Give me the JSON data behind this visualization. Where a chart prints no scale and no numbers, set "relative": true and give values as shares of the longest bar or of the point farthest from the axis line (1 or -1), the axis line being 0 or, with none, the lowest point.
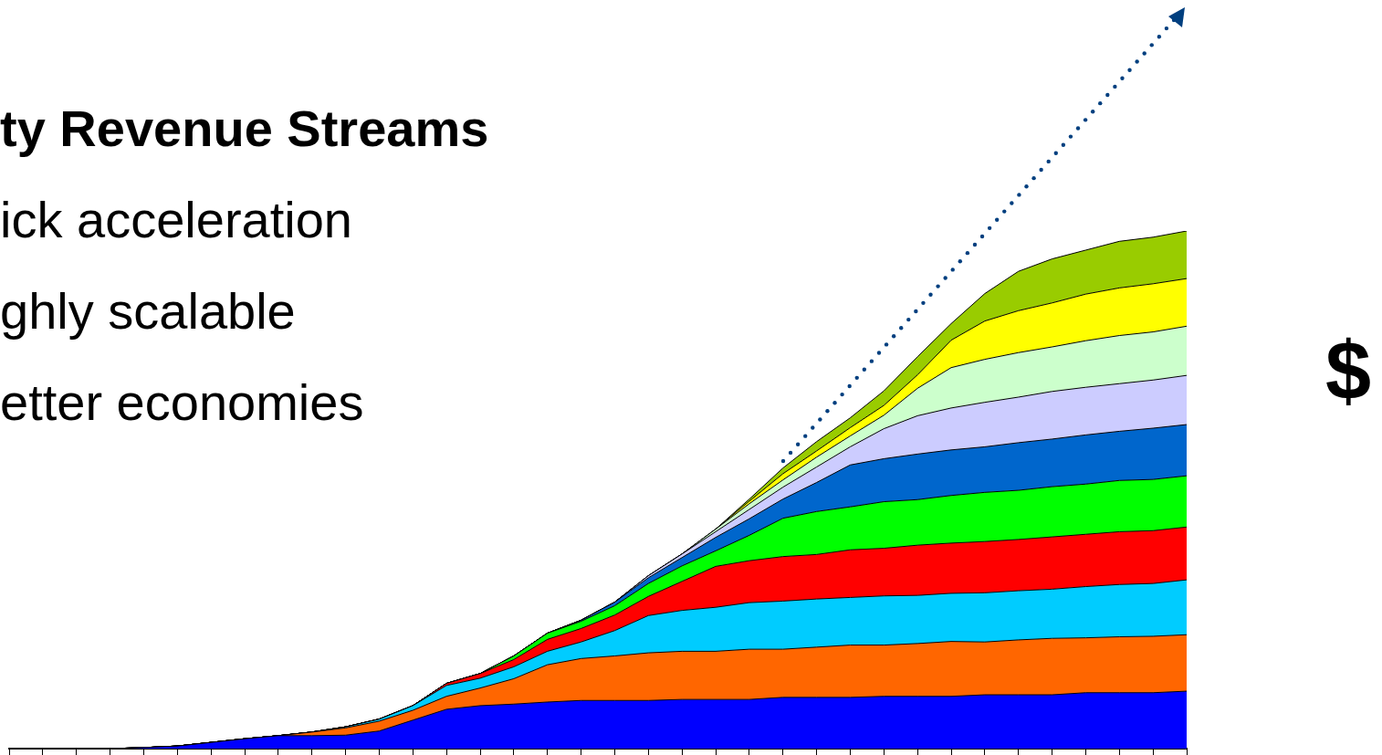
{
  "chart_data": {
    "type": "area",
    "title": "ty Revenue Streams",
    "annotations": [
      "ick acceleration",
      "ghly scalable",
      "etter economies",
      "$"
    ],
    "relative": true,
    "stacked": true,
    "categories": [
      null,
      null,
      null,
      null,
      null,
      null,
      null,
      null,
      null,
      null,
      null,
      null,
      null,
      null,
      null,
      null,
      null,
      null,
      null,
      null,
      null,
      null,
      null,
      null,
      null,
      null,
      null,
      null,
      null,
      null,
      null,
      null,
      null,
      null,
      null,
      null
    ],
    "series": [
      {
        "color": "#0000ff",
        "values": [
          0,
          0,
          0,
          0,
          0.002,
          0.005,
          0.012,
          0.019,
          0.025,
          0.025,
          0.026,
          0.034,
          0.055,
          0.076,
          0.083,
          0.086,
          0.09,
          0.093,
          0.093,
          0.093,
          0.095,
          0.095,
          0.095,
          0.099,
          0.099,
          0.099,
          0.101,
          0.101,
          0.101,
          0.104,
          0.104,
          0.104,
          0.108,
          0.108,
          0.108,
          0.111
        ]
      },
      {
        "color": "#ff6600",
        "values": [
          0,
          0,
          0,
          0,
          0,
          0,
          0,
          0,
          0,
          0.007,
          0.014,
          0.019,
          0.019,
          0.025,
          0.034,
          0.049,
          0.072,
          0.081,
          0.086,
          0.092,
          0.093,
          0.093,
          0.097,
          0.093,
          0.097,
          0.101,
          0.099,
          0.102,
          0.106,
          0.102,
          0.106,
          0.109,
          0.106,
          0.108,
          0.109,
          0.109
        ]
      },
      {
        "color": "#00ccff",
        "values": [
          0,
          0,
          0,
          0,
          0,
          0,
          0,
          0,
          0,
          0,
          0.002,
          0.004,
          0.009,
          0.021,
          0.019,
          0.023,
          0.026,
          0.032,
          0.049,
          0.072,
          0.079,
          0.085,
          0.09,
          0.093,
          0.093,
          0.092,
          0.095,
          0.093,
          0.093,
          0.095,
          0.095,
          0.095,
          0.099,
          0.101,
          0.102,
          0.106
        ]
      },
      {
        "color": "#ff0000",
        "values": [
          0,
          0,
          0,
          0,
          0,
          0,
          0,
          0,
          0,
          0,
          0,
          0,
          0,
          0.004,
          0.009,
          0.014,
          0.023,
          0.026,
          0.03,
          0.037,
          0.056,
          0.079,
          0.081,
          0.086,
          0.086,
          0.092,
          0.092,
          0.097,
          0.097,
          0.099,
          0.099,
          0.101,
          0.101,
          0.102,
          0.102,
          0.102
        ]
      },
      {
        "color": "#00ff00",
        "values": [
          0,
          0,
          0,
          0,
          0,
          0,
          0,
          0,
          0,
          0,
          0,
          0,
          0,
          0,
          0,
          0.007,
          0.012,
          0.014,
          0.018,
          0.025,
          0.03,
          0.03,
          0.049,
          0.074,
          0.083,
          0.083,
          0.09,
          0.088,
          0.092,
          0.095,
          0.095,
          0.097,
          0.097,
          0.099,
          0.099,
          0.099
        ]
      },
      {
        "color": "#0066cc",
        "values": [
          0,
          0,
          0,
          0,
          0,
          0,
          0,
          0,
          0,
          0,
          0,
          0,
          0,
          0,
          0,
          0,
          0,
          0.002,
          0.007,
          0.011,
          0.016,
          0.026,
          0.032,
          0.037,
          0.056,
          0.081,
          0.083,
          0.088,
          0.088,
          0.088,
          0.092,
          0.092,
          0.095,
          0.095,
          0.099,
          0.099
        ]
      },
      {
        "color": "#ccccff",
        "values": [
          0,
          0,
          0,
          0,
          0,
          0,
          0,
          0,
          0,
          0,
          0,
          0,
          0,
          0,
          0,
          0,
          0,
          0,
          0,
          0.004,
          0.007,
          0.011,
          0.018,
          0.023,
          0.03,
          0.035,
          0.058,
          0.074,
          0.081,
          0.086,
          0.088,
          0.092,
          0.092,
          0.092,
          0.093,
          0.095
        ]
      },
      {
        "color": "#ccffcc",
        "values": [
          0,
          0,
          0,
          0,
          0,
          0,
          0,
          0,
          0,
          0,
          0,
          0,
          0,
          0,
          0,
          0,
          0,
          0,
          0,
          0,
          0,
          0.005,
          0.011,
          0.014,
          0.019,
          0.021,
          0.026,
          0.053,
          0.078,
          0.083,
          0.086,
          0.086,
          0.09,
          0.093,
          0.093,
          0.095
        ]
      },
      {
        "color": "#ffff00",
        "values": [
          0,
          0,
          0,
          0,
          0,
          0,
          0,
          0,
          0,
          0,
          0,
          0,
          0,
          0,
          0,
          0,
          0,
          0,
          0,
          0,
          0,
          0,
          0.005,
          0.012,
          0.012,
          0.016,
          0.019,
          0.026,
          0.053,
          0.074,
          0.081,
          0.085,
          0.09,
          0.092,
          0.093,
          0.092
        ]
      },
      {
        "color": "#99cc00",
        "values": [
          0,
          0,
          0,
          0,
          0,
          0,
          0,
          0,
          0,
          0,
          0,
          0,
          0,
          0,
          0,
          0,
          0,
          0,
          0,
          0,
          0,
          0,
          0.004,
          0.011,
          0.018,
          0.019,
          0.028,
          0.035,
          0.032,
          0.053,
          0.076,
          0.085,
          0.085,
          0.09,
          0.09,
          0.092
        ]
      }
    ]
  }
}
